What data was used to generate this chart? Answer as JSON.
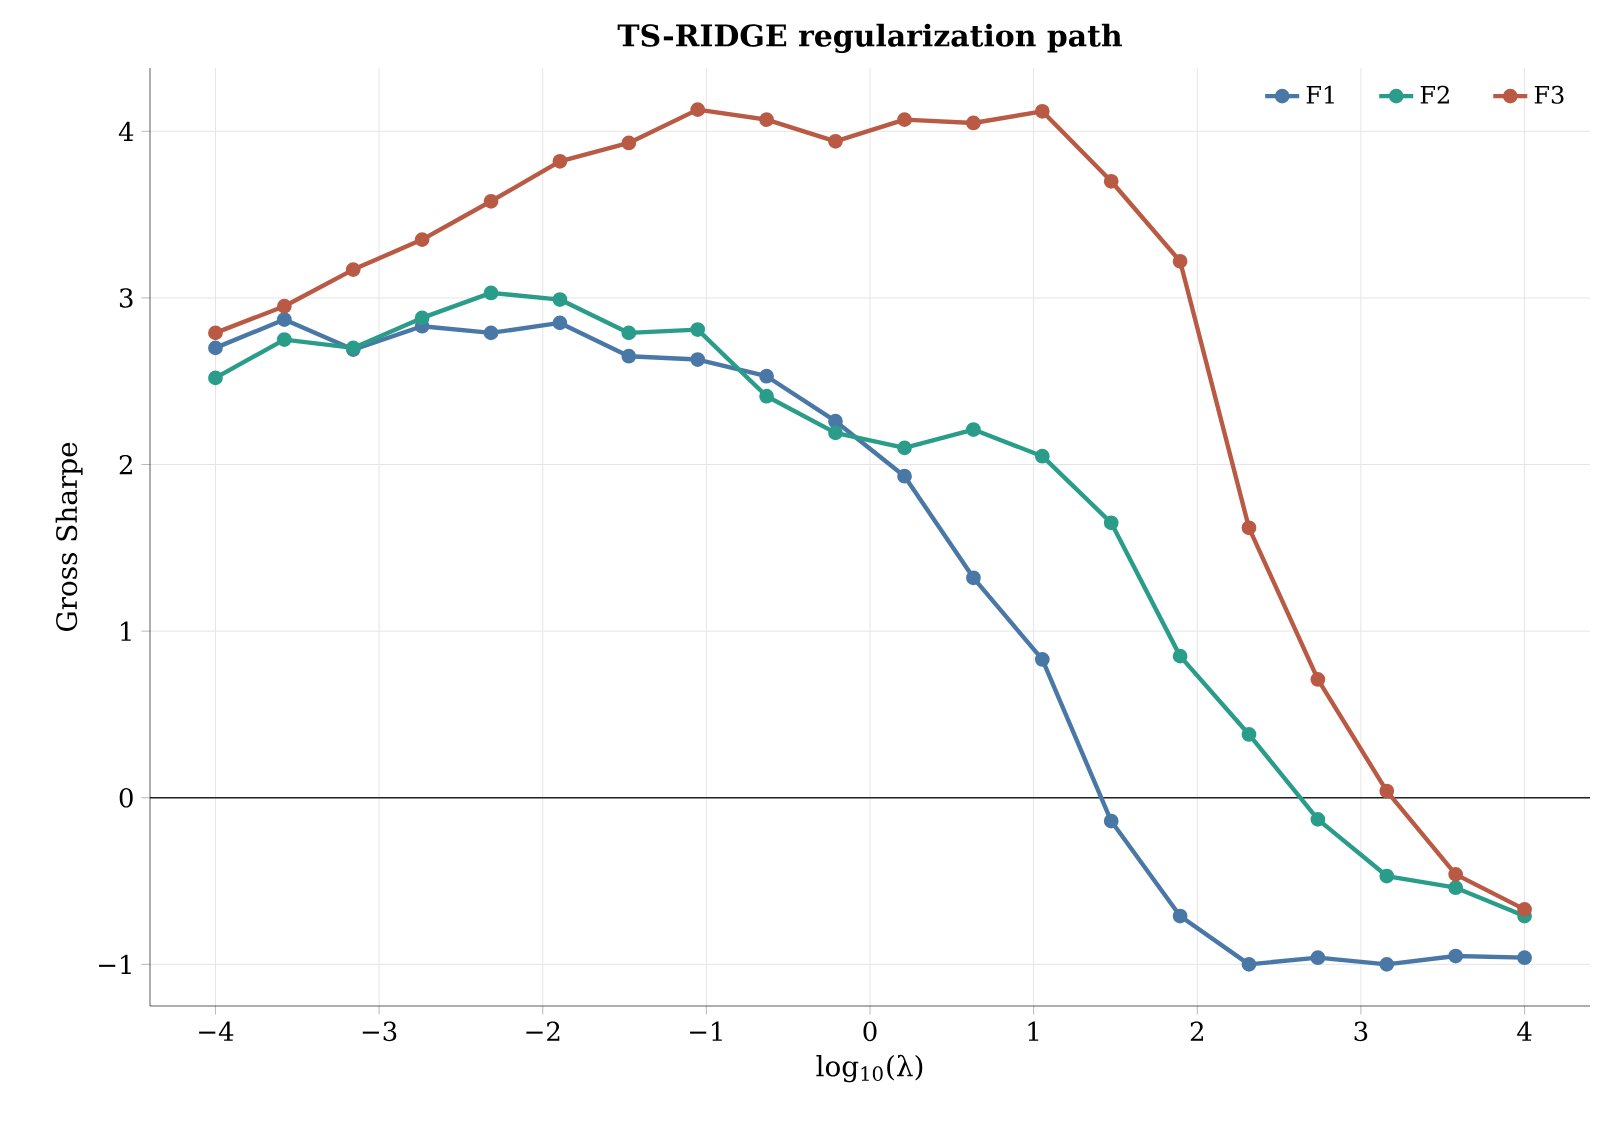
{
  "chart_data": {
    "type": "line",
    "title": "TS-RIDGE regularization path",
    "xlabel": "log$_{10}$(λ)",
    "ylabel": "Gross Sharpe",
    "x": [
      -4,
      -3.579,
      -3.158,
      -2.737,
      -2.316,
      -1.895,
      -1.474,
      -1.053,
      -0.632,
      -0.211,
      0.211,
      0.632,
      1.053,
      1.474,
      1.895,
      2.316,
      2.737,
      3.158,
      3.579,
      4
    ],
    "series": [
      {
        "name": "F1",
        "color": "#4a78a6",
        "values": [
          2.7,
          2.87,
          2.69,
          2.83,
          2.79,
          2.85,
          2.65,
          2.63,
          2.53,
          2.26,
          1.93,
          1.32,
          0.83,
          -0.14,
          -0.71,
          -1.0,
          -0.96,
          -1.0,
          -0.95,
          -0.96
        ]
      },
      {
        "name": "F2",
        "color": "#2a9d8a",
        "values": [
          2.52,
          2.75,
          2.7,
          2.88,
          3.03,
          2.99,
          2.79,
          2.81,
          2.41,
          2.19,
          2.1,
          2.21,
          2.05,
          1.65,
          0.85,
          0.38,
          -0.13,
          -0.47,
          -0.54,
          -0.71
        ]
      },
      {
        "name": "F3",
        "color": "#b85a44",
        "values": [
          2.79,
          2.95,
          3.17,
          3.35,
          3.58,
          3.82,
          3.93,
          4.13,
          4.07,
          3.94,
          4.07,
          4.05,
          4.12,
          3.7,
          3.22,
          1.62,
          0.71,
          0.04,
          -0.46,
          -0.67
        ]
      }
    ],
    "xlim": [
      -4.4,
      4.4
    ],
    "ylim": [
      -1.25,
      4.38
    ],
    "xticks": [
      {
        "value": -4,
        "label": "−4"
      },
      {
        "value": -3,
        "label": "−3"
      },
      {
        "value": -2,
        "label": "−2"
      },
      {
        "value": -1,
        "label": "−1"
      },
      0,
      1,
      2,
      3,
      4
    ],
    "yticks": [
      {
        "value": -1,
        "label": "−1"
      },
      0,
      1,
      2,
      3,
      4
    ],
    "ref_lines": [
      {
        "axis": "y",
        "value": 0,
        "color": "#222222"
      }
    ],
    "grid": true,
    "legend": "top right",
    "marker": "circle",
    "line_style": "solid"
  }
}
